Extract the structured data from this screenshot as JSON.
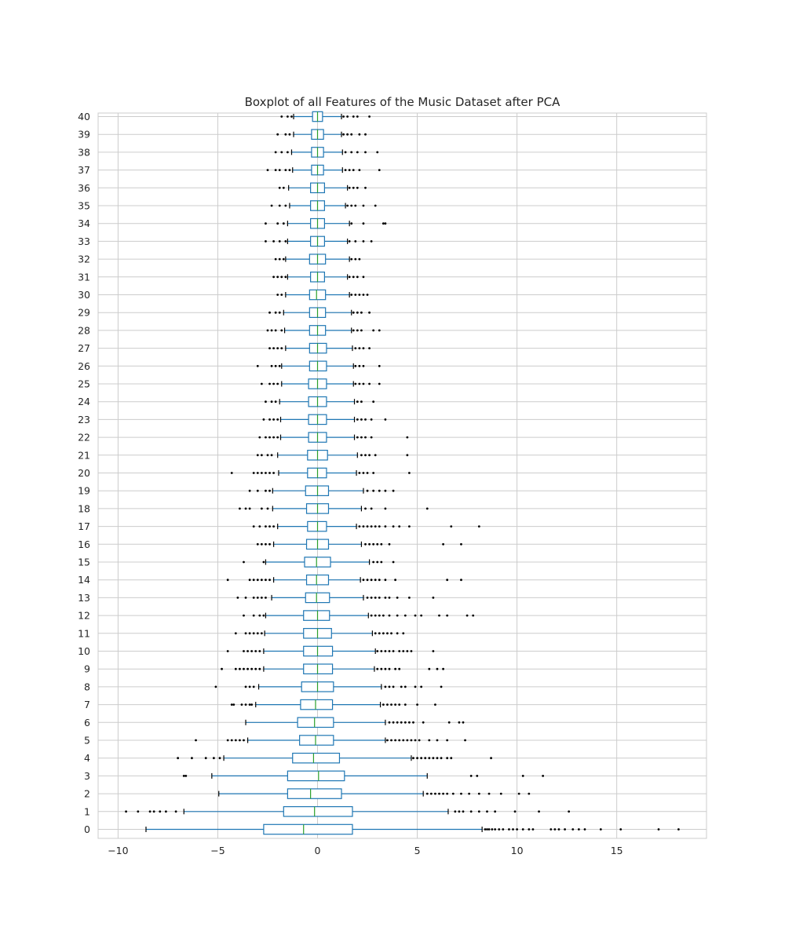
{
  "chart_data": {
    "type": "boxplot",
    "orientation": "horizontal",
    "title": "Boxplot of all Features of the Music Dataset after PCA",
    "xlabel": "",
    "ylabel": "",
    "xlim": [
      -11,
      19.5
    ],
    "xticks": [
      -10,
      -5,
      0,
      5,
      10,
      15
    ],
    "xtick_labels": [
      "−10",
      "−5",
      "0",
      "5",
      "10",
      "15"
    ],
    "grid": true,
    "colors": {
      "box": "#1f77b4",
      "median": "#2ca02c",
      "flier": "#000000",
      "grid": "#cccccc",
      "frame": "#cccccc"
    },
    "boxes": [
      {
        "label": "0",
        "whislo": -8.6,
        "q1": -2.7,
        "med": -0.7,
        "q3": 1.75,
        "whishi": 8.25,
        "fliers": [
          8.4,
          8.5,
          8.6,
          8.75,
          8.9,
          9.1,
          9.3,
          9.6,
          9.8,
          10.0,
          10.3,
          10.6,
          10.8,
          11.7,
          11.9,
          12.1,
          12.4,
          12.8,
          13.1,
          13.4,
          14.2,
          15.2,
          17.1,
          18.1
        ]
      },
      {
        "label": "1",
        "whislo": -6.7,
        "q1": -1.7,
        "med": -0.15,
        "q3": 1.75,
        "whishi": 6.55,
        "fliers": [
          -9.6,
          -9.0,
          -8.4,
          -8.2,
          -7.9,
          -7.6,
          -7.1,
          6.9,
          7.1,
          7.3,
          7.7,
          8.1,
          8.5,
          8.9,
          9.9,
          11.1,
          12.6
        ]
      },
      {
        "label": "2",
        "whislo": -4.95,
        "q1": -1.5,
        "med": -0.35,
        "q3": 1.2,
        "whishi": 5.3,
        "fliers": [
          5.5,
          5.7,
          5.9,
          6.1,
          6.3,
          6.5,
          6.8,
          7.2,
          7.6,
          8.1,
          8.6,
          9.2,
          10.1,
          10.6
        ]
      },
      {
        "label": "3",
        "whislo": -5.3,
        "q1": -1.5,
        "med": 0.05,
        "q3": 1.35,
        "whishi": 5.5,
        "fliers": [
          -6.7,
          -6.6,
          7.7,
          8.0,
          10.3,
          11.3
        ]
      },
      {
        "label": "4",
        "whislo": -4.7,
        "q1": -1.25,
        "med": -0.2,
        "q3": 1.1,
        "whishi": 4.7,
        "fliers": [
          -7.0,
          -6.3,
          -5.6,
          -5.2,
          -4.9,
          4.8,
          5.0,
          5.2,
          5.4,
          5.6,
          5.8,
          6.0,
          6.2,
          6.5,
          6.7,
          8.7
        ]
      },
      {
        "label": "5",
        "whislo": -3.5,
        "q1": -0.9,
        "med": -0.1,
        "q3": 0.8,
        "whishi": 3.4,
        "fliers": [
          -6.1,
          -4.5,
          -4.3,
          -4.1,
          -3.9,
          -3.7,
          3.5,
          3.7,
          3.9,
          4.1,
          4.3,
          4.5,
          4.7,
          4.9,
          5.1,
          5.6,
          6.0,
          6.5,
          7.4
        ]
      },
      {
        "label": "6",
        "whislo": -3.6,
        "q1": -1.0,
        "med": -0.15,
        "q3": 0.8,
        "whishi": 3.4,
        "fliers": [
          3.6,
          3.8,
          4.0,
          4.2,
          4.4,
          4.6,
          4.8,
          5.3,
          6.6,
          7.1,
          7.3
        ]
      },
      {
        "label": "7",
        "whislo": -3.1,
        "q1": -0.85,
        "med": -0.1,
        "q3": 0.75,
        "whishi": 3.15,
        "fliers": [
          -4.3,
          -4.2,
          -3.8,
          -3.6,
          -3.4,
          -3.3,
          3.3,
          3.5,
          3.7,
          3.9,
          4.1,
          4.4,
          5.0,
          5.9
        ]
      },
      {
        "label": "8",
        "whislo": -2.95,
        "q1": -0.8,
        "med": 0.0,
        "q3": 0.8,
        "whishi": 3.2,
        "fliers": [
          -5.1,
          -3.6,
          -3.4,
          -3.2,
          3.4,
          3.6,
          3.8,
          4.2,
          4.4,
          4.9,
          5.2,
          6.2
        ]
      },
      {
        "label": "9",
        "whislo": -2.7,
        "q1": -0.7,
        "med": 0.0,
        "q3": 0.75,
        "whishi": 2.85,
        "fliers": [
          -4.8,
          -4.1,
          -3.9,
          -3.7,
          -3.5,
          -3.3,
          -3.1,
          -2.9,
          3.0,
          3.2,
          3.4,
          3.6,
          3.9,
          4.1,
          5.6,
          6.0,
          6.3
        ]
      },
      {
        "label": "10",
        "whislo": -2.7,
        "q1": -0.7,
        "med": 0.0,
        "q3": 0.75,
        "whishi": 2.9,
        "fliers": [
          -4.5,
          -3.7,
          -3.5,
          -3.3,
          -3.1,
          -2.9,
          3.0,
          3.2,
          3.4,
          3.6,
          3.8,
          4.1,
          4.3,
          4.5,
          4.7,
          5.8
        ]
      },
      {
        "label": "11",
        "whislo": -2.65,
        "q1": -0.7,
        "med": 0.0,
        "q3": 0.7,
        "whishi": 2.75,
        "fliers": [
          -4.1,
          -3.6,
          -3.4,
          -3.2,
          -3.0,
          -2.8,
          2.9,
          3.1,
          3.3,
          3.5,
          3.7,
          4.0,
          4.3
        ]
      },
      {
        "label": "12",
        "whislo": -2.6,
        "q1": -0.7,
        "med": 0.0,
        "q3": 0.6,
        "whishi": 2.55,
        "fliers": [
          -3.7,
          -3.2,
          -2.9,
          -2.7,
          2.7,
          2.9,
          3.1,
          3.3,
          3.6,
          4.0,
          4.4,
          4.9,
          5.2,
          6.1,
          6.5,
          7.5,
          7.8
        ]
      },
      {
        "label": "13",
        "whislo": -2.3,
        "q1": -0.6,
        "med": -0.05,
        "q3": 0.6,
        "whishi": 2.3,
        "fliers": [
          -4.0,
          -3.6,
          -3.2,
          -3.0,
          -2.8,
          -2.6,
          2.5,
          2.7,
          2.9,
          3.1,
          3.4,
          3.6,
          4.0,
          4.6,
          5.8
        ]
      },
      {
        "label": "14",
        "whislo": -2.2,
        "q1": -0.55,
        "med": -0.05,
        "q3": 0.55,
        "whishi": 2.15,
        "fliers": [
          -4.5,
          -3.4,
          -3.2,
          -3.0,
          -2.8,
          -2.6,
          -2.4,
          2.3,
          2.5,
          2.7,
          2.9,
          3.1,
          3.4,
          3.9,
          6.5,
          7.2
        ]
      },
      {
        "label": "15",
        "whislo": -2.6,
        "q1": -0.65,
        "med": -0.05,
        "q3": 0.65,
        "whishi": 2.6,
        "fliers": [
          -3.7,
          -2.7,
          2.8,
          3.0,
          3.2,
          3.8
        ]
      },
      {
        "label": "16",
        "whislo": -2.2,
        "q1": -0.55,
        "med": 0.0,
        "q3": 0.55,
        "whishi": 2.2,
        "fliers": [
          -3.0,
          -2.8,
          -2.6,
          -2.4,
          2.4,
          2.6,
          2.8,
          3.0,
          3.2,
          3.6,
          6.3,
          7.2
        ]
      },
      {
        "label": "17",
        "whislo": -2.0,
        "q1": -0.5,
        "med": 0.0,
        "q3": 0.45,
        "whishi": 1.95,
        "fliers": [
          -3.2,
          -2.9,
          -2.6,
          -2.4,
          -2.2,
          2.1,
          2.3,
          2.5,
          2.7,
          2.9,
          3.1,
          3.4,
          3.8,
          4.1,
          4.6,
          6.7,
          8.1
        ]
      },
      {
        "label": "18",
        "whislo": -2.25,
        "q1": -0.55,
        "med": 0.0,
        "q3": 0.55,
        "whishi": 2.2,
        "fliers": [
          -3.9,
          -3.6,
          -3.4,
          -2.8,
          -2.5,
          2.4,
          2.7,
          3.4,
          5.5
        ]
      },
      {
        "label": "19",
        "whislo": -2.25,
        "q1": -0.6,
        "med": 0.0,
        "q3": 0.55,
        "whishi": 2.3,
        "fliers": [
          -3.4,
          -3.0,
          -2.6,
          -2.4,
          2.5,
          2.8,
          3.1,
          3.4,
          3.8
        ]
      },
      {
        "label": "20",
        "whislo": -1.95,
        "q1": -0.5,
        "med": 0.0,
        "q3": 0.45,
        "whishi": 1.95,
        "fliers": [
          -4.3,
          -3.2,
          -3.0,
          -2.8,
          -2.6,
          -2.4,
          -2.2,
          2.1,
          2.3,
          2.5,
          2.8,
          4.6
        ]
      },
      {
        "label": "21",
        "whislo": -2.0,
        "q1": -0.5,
        "med": 0.0,
        "q3": 0.5,
        "whishi": 2.0,
        "fliers": [
          -3.0,
          -2.8,
          -2.5,
          -2.3,
          2.2,
          2.4,
          2.6,
          2.9,
          4.5
        ]
      },
      {
        "label": "22",
        "whislo": -1.85,
        "q1": -0.45,
        "med": 0.0,
        "q3": 0.45,
        "whishi": 1.85,
        "fliers": [
          -2.9,
          -2.6,
          -2.4,
          -2.2,
          -2.0,
          2.0,
          2.2,
          2.4,
          2.7,
          4.5
        ]
      },
      {
        "label": "23",
        "whislo": -1.85,
        "q1": -0.45,
        "med": 0.0,
        "q3": 0.45,
        "whishi": 1.85,
        "fliers": [
          -2.7,
          -2.4,
          -2.2,
          -2.0,
          2.0,
          2.2,
          2.4,
          2.7,
          3.4
        ]
      },
      {
        "label": "24",
        "whislo": -1.9,
        "q1": -0.45,
        "med": 0.0,
        "q3": 0.45,
        "whishi": 1.85,
        "fliers": [
          -2.6,
          -2.3,
          -2.1,
          2.0,
          2.2,
          2.8
        ]
      },
      {
        "label": "25",
        "whislo": -1.8,
        "q1": -0.45,
        "med": 0.0,
        "q3": 0.45,
        "whishi": 1.8,
        "fliers": [
          -2.8,
          -2.4,
          -2.2,
          -2.0,
          1.9,
          2.1,
          2.3,
          2.6,
          3.1
        ]
      },
      {
        "label": "26",
        "whislo": -1.8,
        "q1": -0.4,
        "med": 0.0,
        "q3": 0.45,
        "whishi": 1.8,
        "fliers": [
          -3.0,
          -2.3,
          -2.1,
          -1.9,
          1.9,
          2.1,
          2.3,
          3.1
        ]
      },
      {
        "label": "27",
        "whislo": -1.6,
        "q1": -0.4,
        "med": 0.0,
        "q3": 0.45,
        "whishi": 1.75,
        "fliers": [
          -2.4,
          -2.2,
          -2.0,
          -1.8,
          1.9,
          2.1,
          2.3,
          2.6
        ]
      },
      {
        "label": "28",
        "whislo": -1.65,
        "q1": -0.4,
        "med": 0.0,
        "q3": 0.4,
        "whishi": 1.7,
        "fliers": [
          -2.5,
          -2.3,
          -2.1,
          -1.8,
          1.8,
          2.0,
          2.2,
          2.8,
          3.1
        ]
      },
      {
        "label": "29",
        "whislo": -1.7,
        "q1": -0.4,
        "med": 0.0,
        "q3": 0.4,
        "whishi": 1.7,
        "fliers": [
          -2.4,
          -2.1,
          -1.9,
          1.8,
          2.0,
          2.2,
          2.6
        ]
      },
      {
        "label": "30",
        "whislo": -1.6,
        "q1": -0.4,
        "med": -0.05,
        "q3": 0.4,
        "whishi": 1.6,
        "fliers": [
          -2.0,
          -1.8,
          1.7,
          1.9,
          2.1,
          2.3,
          2.5
        ]
      },
      {
        "label": "31",
        "whislo": -1.5,
        "q1": -0.35,
        "med": 0.0,
        "q3": 0.35,
        "whishi": 1.5,
        "fliers": [
          -2.2,
          -2.0,
          -1.8,
          -1.6,
          1.6,
          1.8,
          2.0,
          2.3
        ]
      },
      {
        "label": "32",
        "whislo": -1.6,
        "q1": -0.4,
        "med": 0.0,
        "q3": 0.4,
        "whishi": 1.6,
        "fliers": [
          -2.1,
          -1.9,
          -1.7,
          1.7,
          1.9,
          2.1
        ]
      },
      {
        "label": "33",
        "whislo": -1.5,
        "q1": -0.35,
        "med": 0.0,
        "q3": 0.35,
        "whishi": 1.5,
        "fliers": [
          -2.6,
          -2.2,
          -1.9,
          -1.6,
          1.6,
          1.9,
          2.3,
          2.7
        ]
      },
      {
        "label": "34",
        "whislo": -1.5,
        "q1": -0.35,
        "med": 0.0,
        "q3": 0.35,
        "whishi": 1.6,
        "fliers": [
          -2.6,
          -2.0,
          -1.7,
          1.7,
          2.3,
          3.3,
          3.4
        ]
      },
      {
        "label": "35",
        "whislo": -1.4,
        "q1": -0.35,
        "med": 0.0,
        "q3": 0.35,
        "whishi": 1.4,
        "fliers": [
          -2.3,
          -1.9,
          -1.6,
          1.5,
          1.7,
          1.9,
          2.3,
          2.9
        ]
      },
      {
        "label": "36",
        "whislo": -1.45,
        "q1": -0.35,
        "med": 0.0,
        "q3": 0.35,
        "whishi": 1.5,
        "fliers": [
          -1.9,
          -1.7,
          1.6,
          1.8,
          2.0,
          2.4
        ]
      },
      {
        "label": "37",
        "whislo": -1.25,
        "q1": -0.3,
        "med": 0.0,
        "q3": 0.3,
        "whishi": 1.25,
        "fliers": [
          -2.5,
          -2.1,
          -1.9,
          -1.6,
          -1.4,
          1.4,
          1.6,
          1.8,
          2.1,
          3.1
        ]
      },
      {
        "label": "38",
        "whislo": -1.3,
        "q1": -0.3,
        "med": 0.0,
        "q3": 0.3,
        "whishi": 1.25,
        "fliers": [
          -2.1,
          -1.8,
          -1.5,
          1.4,
          1.7,
          2.0,
          2.4,
          3.0
        ]
      },
      {
        "label": "39",
        "whislo": -1.2,
        "q1": -0.3,
        "med": 0.0,
        "q3": 0.3,
        "whishi": 1.2,
        "fliers": [
          -2.0,
          -1.6,
          -1.4,
          1.3,
          1.5,
          1.7,
          2.1,
          2.4
        ]
      },
      {
        "label": "40",
        "whislo": -1.2,
        "q1": -0.25,
        "med": 0.0,
        "q3": 0.25,
        "whishi": 1.2,
        "fliers": [
          -1.8,
          -1.5,
          -1.3,
          1.3,
          1.5,
          1.8,
          2.0,
          2.6
        ]
      }
    ]
  }
}
